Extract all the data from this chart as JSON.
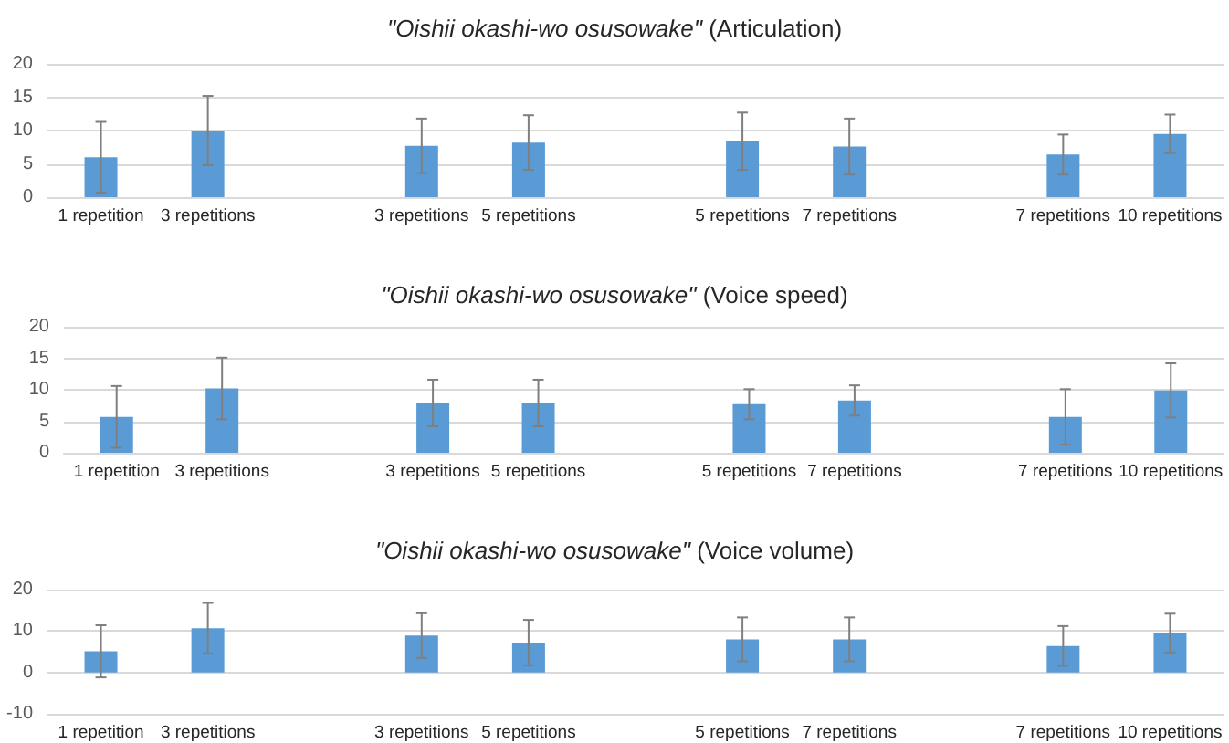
{
  "chart_data": [
    {
      "type": "bar",
      "title": "\"Oishii okashi-wo osusowake\" (Articulation)",
      "categories": [
        "1 repetition",
        "3 repetitions",
        null,
        "3 repetitions",
        "5 repetitions",
        null,
        "5 repetitions",
        "7 repetitions",
        null,
        "7 repetitions",
        "10 repetitions"
      ],
      "values": [
        6.0,
        10.0,
        null,
        7.7,
        8.2,
        null,
        8.4,
        7.6,
        null,
        6.4,
        9.5
      ],
      "errors": [
        5.3,
        5.2,
        null,
        4.1,
        4.1,
        null,
        4.3,
        4.2,
        null,
        3.0,
        2.9
      ],
      "color": "#5b9bd5",
      "ylim": [
        0,
        20
      ],
      "yticks": [
        0,
        5,
        10,
        15,
        20
      ],
      "grid": "y"
    },
    {
      "type": "bar",
      "title": "\"Oishii okashi-wo osusowake\" (Voice speed)",
      "categories": [
        "1 repetition",
        "3 repetitions",
        null,
        "3 repetitions",
        "5 repetitions",
        null,
        "5 repetitions",
        "7 repetitions",
        null,
        "7 repetitions",
        "10 repetitions"
      ],
      "values": [
        5.7,
        10.2,
        null,
        7.9,
        7.9,
        null,
        7.7,
        8.3,
        null,
        5.7,
        9.9
      ],
      "errors": [
        4.9,
        4.9,
        null,
        3.7,
        3.7,
        null,
        2.4,
        2.4,
        null,
        4.4,
        4.3
      ],
      "color": "#5b9bd5",
      "ylim": [
        0,
        20
      ],
      "yticks": [
        0,
        5,
        10,
        15,
        20
      ],
      "grid": "y"
    },
    {
      "type": "bar",
      "title": "\"Oishii okashi-wo osusowake\" (Voice volume)",
      "categories": [
        "1 repetition",
        "3 repetitions",
        null,
        "3 repetitions",
        "5 repetitions",
        null,
        "5 repetitions",
        "7 repetitions",
        null,
        "7 repetitions",
        "10 repetitions"
      ],
      "values": [
        5.1,
        10.7,
        null,
        8.9,
        7.2,
        null,
        8.0,
        8.0,
        null,
        6.4,
        9.5
      ],
      "errors": [
        6.3,
        6.1,
        null,
        5.4,
        5.5,
        null,
        5.3,
        5.3,
        null,
        4.8,
        4.7
      ],
      "color": "#5b9bd5",
      "ylim": [
        -10,
        20
      ],
      "yticks": [
        -10,
        0,
        10,
        20
      ],
      "grid": "y"
    }
  ]
}
